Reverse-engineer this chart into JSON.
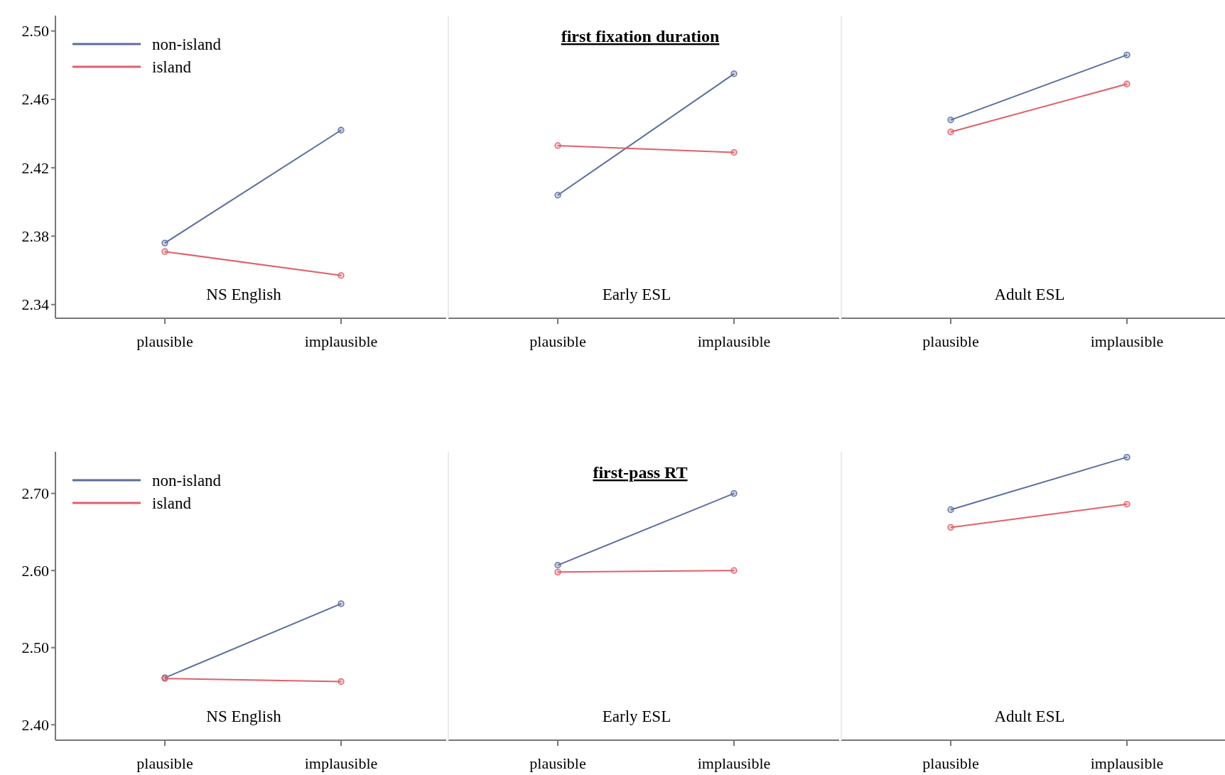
{
  "chart_data": [
    {
      "type": "line",
      "categories": [
        "plausible",
        "implausible"
      ],
      "ylim": [
        2.332,
        2.509
      ],
      "yticks": [
        {
          "value": 2.34,
          "label": "2.34"
        },
        {
          "value": 2.38,
          "label": "2.38"
        },
        {
          "value": 2.42,
          "label": "2.42"
        },
        {
          "value": 2.46,
          "label": "2.46"
        },
        {
          "value": 2.5,
          "label": "2.50"
        }
      ],
      "marker": "circle",
      "legend": "top left",
      "grid": false,
      "annotations": [
        "NS English"
      ],
      "series": [
        {
          "name": "non-island",
          "color": "#5b6e9e",
          "values": [
            2.376,
            2.442
          ]
        },
        {
          "name": "island",
          "color": "#e0606a",
          "values": [
            2.371,
            2.357
          ]
        }
      ]
    },
    {
      "type": "line",
      "title": "first fixation duration",
      "categories": [
        "plausible",
        "implausible"
      ],
      "ylim": [
        2.332,
        2.509
      ],
      "marker": "circle",
      "grid": false,
      "tick_labels": "x",
      "annotations": [
        "Early ESL"
      ],
      "series": [
        {
          "color": "#5b6e9e",
          "values": [
            2.404,
            2.475
          ]
        },
        {
          "color": "#e0606a",
          "values": [
            2.433,
            2.429
          ]
        }
      ]
    },
    {
      "type": "line",
      "categories": [
        "plausible",
        "implausible"
      ],
      "ylim": [
        2.332,
        2.509
      ],
      "marker": "circle",
      "grid": false,
      "tick_labels": "x",
      "annotations": [
        "Adult ESL"
      ],
      "series": [
        {
          "color": "#5b6e9e",
          "values": [
            2.448,
            2.486
          ]
        },
        {
          "color": "#e0606a",
          "values": [
            2.441,
            2.469
          ]
        }
      ]
    },
    {
      "type": "line",
      "categories": [
        "plausible",
        "implausible"
      ],
      "ylim": [
        2.38,
        2.754
      ],
      "yticks": [
        {
          "value": 2.4,
          "label": "2.40"
        },
        {
          "value": 2.5,
          "label": "2.50"
        },
        {
          "value": 2.6,
          "label": "2.60"
        },
        {
          "value": 2.7,
          "label": "2.70"
        }
      ],
      "marker": "circle",
      "legend": "top left",
      "grid": false,
      "annotations": [
        "NS English"
      ],
      "series": [
        {
          "name": "non-island",
          "color": "#5b6e9e",
          "values": [
            2.461,
            2.557
          ]
        },
        {
          "name": "island",
          "color": "#e0606a",
          "values": [
            2.46,
            2.456
          ]
        }
      ]
    },
    {
      "type": "line",
      "title": "first-pass RT",
      "categories": [
        "plausible",
        "implausible"
      ],
      "ylim": [
        2.38,
        2.754
      ],
      "marker": "circle",
      "grid": false,
      "tick_labels": "x",
      "annotations": [
        "Early ESL"
      ],
      "series": [
        {
          "color": "#5b6e9e",
          "values": [
            2.607,
            2.7
          ]
        },
        {
          "color": "#e0606a",
          "values": [
            2.598,
            2.6
          ]
        }
      ]
    },
    {
      "type": "line",
      "categories": [
        "plausible",
        "implausible"
      ],
      "ylim": [
        2.38,
        2.754
      ],
      "marker": "circle",
      "grid": false,
      "tick_labels": "x",
      "annotations": [
        "Adult ESL"
      ],
      "series": [
        {
          "color": "#5b6e9e",
          "values": [
            2.679,
            2.747
          ]
        },
        {
          "color": "#e0606a",
          "values": [
            2.656,
            2.686
          ]
        }
      ]
    }
  ]
}
